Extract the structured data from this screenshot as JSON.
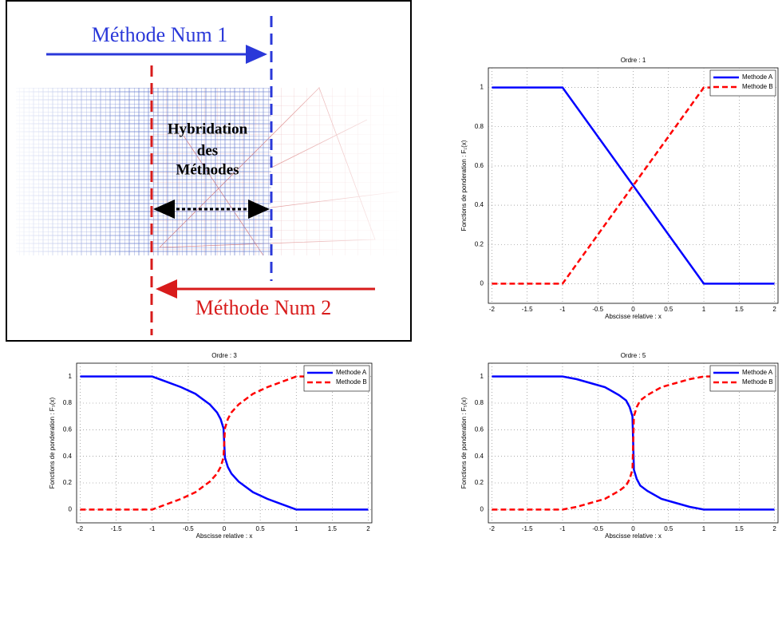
{
  "diagram": {
    "top_label": "Méthode Num 1",
    "center_label": [
      "Hybridation",
      "des",
      "Méthodes"
    ],
    "bottom_label": "Méthode Num 2"
  },
  "chart_data": [
    {
      "type": "line",
      "title": "Ordre : 1",
      "xlabel": "Abscisse relative :  x",
      "ylabel": "Fonctions de ponderation :  F₁(x)",
      "x": [
        -2,
        -1,
        1,
        2
      ],
      "series": [
        {
          "name": "Methode A",
          "color": "#0000ff",
          "dash": false,
          "values": [
            1,
            1,
            0,
            0
          ]
        },
        {
          "name": "Methode B",
          "color": "#ff0000",
          "dash": true,
          "values": [
            0,
            0,
            1,
            1
          ]
        }
      ],
      "xlim": [
        -2.05,
        2.05
      ],
      "ylim": [
        -0.1,
        1.1
      ],
      "xticks": [
        -2,
        -1.5,
        -1,
        -0.5,
        0,
        0.5,
        1,
        1.5,
        2
      ],
      "yticks": [
        0,
        0.2,
        0.4,
        0.6,
        0.8,
        1
      ],
      "grid": true,
      "legend": "northeast"
    },
    {
      "type": "line",
      "title": "Ordre : 3",
      "xlabel": "Abscisse relative :  x",
      "ylabel": "Fonctions de ponderation :  F₃(x)",
      "x": [
        -2,
        -1,
        -0.8,
        -0.6,
        -0.4,
        -0.2,
        -0.1,
        -0.05,
        -0.01,
        0,
        0.01,
        0.05,
        0.1,
        0.2,
        0.4,
        0.6,
        0.8,
        1,
        2
      ],
      "series": [
        {
          "name": "Methode A",
          "color": "#0000ff",
          "dash": false,
          "values": [
            1,
            1,
            0.96,
            0.92,
            0.87,
            0.79,
            0.73,
            0.68,
            0.61,
            0.5,
            0.39,
            0.32,
            0.27,
            0.21,
            0.13,
            0.08,
            0.04,
            0,
            0
          ]
        },
        {
          "name": "Methode B",
          "color": "#ff0000",
          "dash": true,
          "values": [
            0,
            0,
            0.04,
            0.08,
            0.13,
            0.21,
            0.27,
            0.32,
            0.39,
            0.5,
            0.61,
            0.68,
            0.73,
            0.79,
            0.87,
            0.92,
            0.96,
            1,
            1
          ]
        }
      ],
      "xlim": [
        -2.05,
        2.05
      ],
      "ylim": [
        -0.1,
        1.1
      ],
      "xticks": [
        -2,
        -1.5,
        -1,
        -0.5,
        0,
        0.5,
        1,
        1.5,
        2
      ],
      "yticks": [
        0,
        0.2,
        0.4,
        0.6,
        0.8,
        1
      ],
      "grid": true,
      "legend": "northeast"
    },
    {
      "type": "line",
      "title": "Ordre : 5",
      "xlabel": "Abscisse relative :  x",
      "ylabel": "Fonctions de ponderation :  F₅(x)",
      "x": [
        -2,
        -1,
        -0.8,
        -0.6,
        -0.4,
        -0.2,
        -0.1,
        -0.05,
        -0.01,
        0,
        0.01,
        0.05,
        0.1,
        0.2,
        0.4,
        0.6,
        0.8,
        1,
        2
      ],
      "series": [
        {
          "name": "Methode A",
          "color": "#0000ff",
          "dash": false,
          "values": [
            1,
            1,
            0.98,
            0.95,
            0.92,
            0.86,
            0.82,
            0.77,
            0.7,
            0.5,
            0.3,
            0.23,
            0.18,
            0.14,
            0.08,
            0.05,
            0.02,
            0,
            0
          ]
        },
        {
          "name": "Methode B",
          "color": "#ff0000",
          "dash": true,
          "values": [
            0,
            0,
            0.02,
            0.05,
            0.08,
            0.14,
            0.18,
            0.23,
            0.3,
            0.5,
            0.7,
            0.77,
            0.82,
            0.86,
            0.92,
            0.95,
            0.98,
            1,
            1
          ]
        }
      ],
      "xlim": [
        -2.05,
        2.05
      ],
      "ylim": [
        -0.1,
        1.1
      ],
      "xticks": [
        -2,
        -1.5,
        -1,
        -0.5,
        0,
        0.5,
        1,
        1.5,
        2
      ],
      "yticks": [
        0,
        0.2,
        0.4,
        0.6,
        0.8,
        1
      ],
      "grid": true,
      "legend": "northeast"
    }
  ]
}
